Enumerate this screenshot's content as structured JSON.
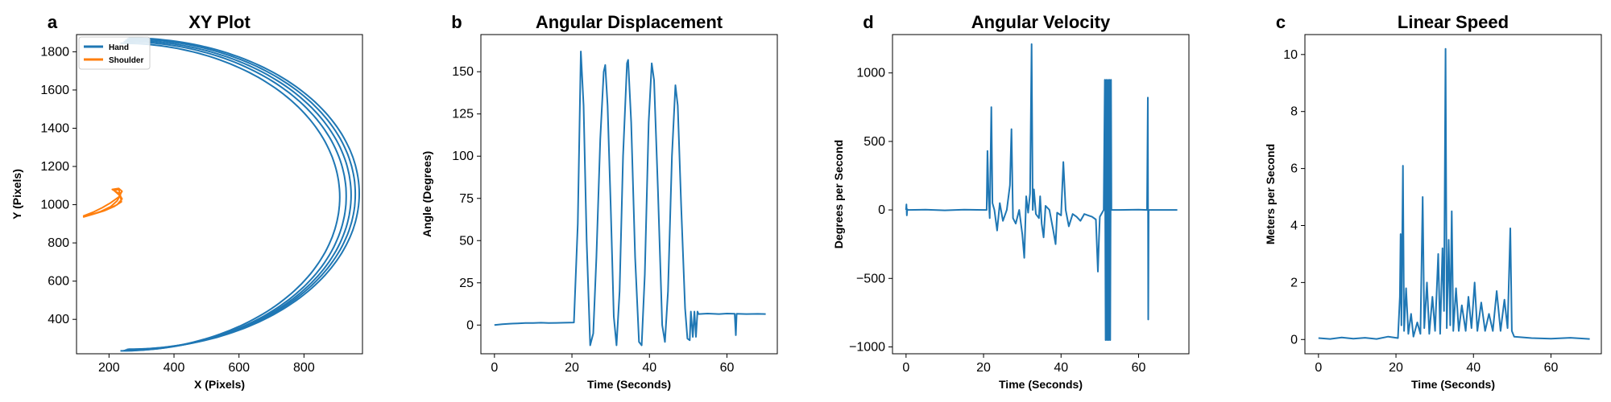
{
  "colors": {
    "series_1": "#1f77b4",
    "series_2": "#ff7f0e"
  },
  "chart_data": [
    {
      "id": "xy",
      "type": "line",
      "letter": "a",
      "title": "XY Plot",
      "xlabel": "X (Pixels)",
      "ylabel": "Y (Pixels)",
      "xlim": [
        100,
        980
      ],
      "ylim": [
        220,
        1890
      ],
      "xticks": [
        200,
        400,
        600,
        800
      ],
      "yticks": [
        400,
        600,
        800,
        1000,
        1200,
        1400,
        1600,
        1800
      ],
      "legend": "top-left",
      "grid": false,
      "series": [
        {
          "name": "Hand",
          "color": "#1f77b4",
          "curves": [
            {
              "x0": 235,
              "xp": 910,
              "y0": 1040,
              "ry": 805
            },
            {
              "x0": 245,
              "xp": 930,
              "y0": 1045,
              "ry": 808
            },
            {
              "x0": 250,
              "xp": 945,
              "y0": 1050,
              "ry": 810
            },
            {
              "x0": 255,
              "xp": 958,
              "y0": 1055,
              "ry": 812
            },
            {
              "x0": 260,
              "xp": 970,
              "y0": 1058,
              "ry": 814
            }
          ]
        },
        {
          "name": "Shoulder",
          "color": "#ff7f0e",
          "points": [
            [
              120,
              940
            ],
            [
              150,
              960
            ],
            [
              180,
              985
            ],
            [
              205,
              1010
            ],
            [
              230,
              1040
            ],
            [
              240,
              1070
            ],
            [
              230,
              1085
            ],
            [
              210,
              1080
            ],
            [
              230,
              1060
            ],
            [
              240,
              1030
            ],
            [
              225,
              1000
            ],
            [
              195,
              975
            ],
            [
              160,
              955
            ],
            [
              125,
              940
            ],
            [
              140,
              945
            ],
            [
              175,
              965
            ],
            [
              205,
              990
            ],
            [
              225,
              1020
            ],
            [
              235,
              1050
            ],
            [
              230,
              1080
            ],
            [
              215,
              1075
            ],
            [
              235,
              1045
            ],
            [
              238,
              1015
            ],
            [
              215,
              990
            ],
            [
              185,
              968
            ],
            [
              150,
              950
            ],
            [
              120,
              935
            ]
          ]
        }
      ]
    },
    {
      "id": "angdisp",
      "type": "line",
      "letter": "b",
      "title": "Angular Displacement",
      "xlabel": "Time (Seconds)",
      "ylabel": "Angle (Degrees)",
      "xlim": [
        -3.5,
        73
      ],
      "ylim": [
        -17,
        172
      ],
      "xticks": [
        0,
        20,
        40,
        60
      ],
      "yticks": [
        0,
        25,
        50,
        75,
        100,
        125,
        150
      ],
      "grid": false,
      "series": [
        {
          "name": "",
          "color": "#1f77b4",
          "points": [
            [
              0,
              0
            ],
            [
              2,
              0.5
            ],
            [
              4,
              0.8
            ],
            [
              6,
              1
            ],
            [
              8,
              1.2
            ],
            [
              10,
              1.2
            ],
            [
              12,
              1.4
            ],
            [
              14,
              1.2
            ],
            [
              16,
              1.3
            ],
            [
              18,
              1.4
            ],
            [
              20.5,
              1.5
            ],
            [
              21.5,
              60
            ],
            [
              22.3,
              162
            ],
            [
              23,
              130
            ],
            [
              23.8,
              50
            ],
            [
              24.7,
              -12
            ],
            [
              25.5,
              -5
            ],
            [
              26.3,
              40
            ],
            [
              27.3,
              110
            ],
            [
              28.2,
              150
            ],
            [
              28.6,
              154
            ],
            [
              29.2,
              130
            ],
            [
              30,
              70
            ],
            [
              30.8,
              5
            ],
            [
              31.5,
              -12
            ],
            [
              32.3,
              20
            ],
            [
              33.2,
              100
            ],
            [
              34.2,
              155
            ],
            [
              34.5,
              157
            ],
            [
              35.3,
              120
            ],
            [
              36.3,
              40
            ],
            [
              37.3,
              -10
            ],
            [
              38,
              -12
            ],
            [
              38.8,
              30
            ],
            [
              39.8,
              120
            ],
            [
              40.6,
              155
            ],
            [
              41.2,
              145
            ],
            [
              42.2,
              80
            ],
            [
              43.3,
              0
            ],
            [
              44,
              -10
            ],
            [
              44.8,
              20
            ],
            [
              45.8,
              100
            ],
            [
              46.7,
              142
            ],
            [
              47.3,
              130
            ],
            [
              48.2,
              70
            ],
            [
              49.2,
              10
            ],
            [
              49.8,
              -8
            ],
            [
              50.4,
              -9
            ],
            [
              50.7,
              8
            ],
            [
              51.2,
              -7
            ],
            [
              51.6,
              8
            ],
            [
              52,
              -7
            ],
            [
              52.4,
              8
            ],
            [
              52.7,
              6.5
            ],
            [
              55,
              6.8
            ],
            [
              58,
              6.5
            ],
            [
              60,
              6.8
            ],
            [
              62,
              6.7
            ],
            [
              62.3,
              -6
            ],
            [
              62.5,
              6.7
            ],
            [
              65,
              6.5
            ],
            [
              68,
              6.6
            ],
            [
              70,
              6.5
            ]
          ]
        }
      ]
    },
    {
      "id": "angvel",
      "type": "line",
      "letter": "d",
      "title": "Angular Velocity",
      "xlabel": "Time (Seconds)",
      "ylabel": "Degrees per Second",
      "xlim": [
        -3.5,
        73
      ],
      "ylim": [
        -1050,
        1280
      ],
      "xticks": [
        0,
        20,
        40,
        60
      ],
      "yticks": [
        -1000,
        -500,
        0,
        500,
        1000
      ],
      "grid": false,
      "series": [
        {
          "name": "",
          "color": "#1f77b4",
          "points": [
            [
              0,
              0
            ],
            [
              0.1,
              40
            ],
            [
              0.2,
              -40
            ],
            [
              0.3,
              5
            ],
            [
              0.5,
              0
            ],
            [
              5,
              2
            ],
            [
              10,
              -3
            ],
            [
              15,
              2
            ],
            [
              20,
              0
            ],
            [
              20.8,
              0
            ],
            [
              21,
              430
            ],
            [
              21.3,
              100
            ],
            [
              21.6,
              -60
            ],
            [
              22,
              750
            ],
            [
              22.3,
              50
            ],
            [
              22.8,
              0
            ],
            [
              23.5,
              -150
            ],
            [
              24.2,
              50
            ],
            [
              25,
              -80
            ],
            [
              26,
              0
            ],
            [
              26.8,
              180
            ],
            [
              27.2,
              590
            ],
            [
              27.6,
              -60
            ],
            [
              28.3,
              -100
            ],
            [
              29.2,
              0
            ],
            [
              30,
              -180
            ],
            [
              30.5,
              -350
            ],
            [
              31,
              100
            ],
            [
              31.5,
              -20
            ],
            [
              32,
              120
            ],
            [
              32.4,
              1210
            ],
            [
              32.7,
              0
            ],
            [
              33,
              150
            ],
            [
              33.5,
              -30
            ],
            [
              34.3,
              -60
            ],
            [
              34.6,
              100
            ],
            [
              35,
              -100
            ],
            [
              35.5,
              -200
            ],
            [
              36,
              30
            ],
            [
              37,
              0
            ],
            [
              38,
              -150
            ],
            [
              38.6,
              -250
            ],
            [
              39,
              -20
            ],
            [
              40,
              -40
            ],
            [
              40.6,
              350
            ],
            [
              41.2,
              0
            ],
            [
              42,
              -120
            ],
            [
              43,
              -30
            ],
            [
              44,
              -50
            ],
            [
              45,
              -80
            ],
            [
              46,
              -30
            ],
            [
              47,
              -40
            ],
            [
              48,
              -50
            ],
            [
              49,
              -70
            ],
            [
              49.5,
              -450
            ],
            [
              49.8,
              -200
            ],
            [
              50,
              -50
            ],
            [
              51,
              0
            ],
            [
              51.3,
              950
            ],
            [
              51.5,
              -950
            ],
            [
              51.7,
              950
            ],
            [
              51.9,
              -950
            ],
            [
              52.1,
              950
            ],
            [
              52.3,
              -950
            ],
            [
              52.5,
              950
            ],
            [
              52.7,
              -950
            ],
            [
              52.9,
              950
            ],
            [
              53,
              0
            ],
            [
              55,
              0
            ],
            [
              60,
              2
            ],
            [
              62.2,
              0
            ],
            [
              62.4,
              820
            ],
            [
              62.5,
              -800
            ],
            [
              62.6,
              0
            ],
            [
              65,
              0
            ],
            [
              70,
              0
            ]
          ]
        }
      ]
    },
    {
      "id": "linspeed",
      "type": "line",
      "letter": "c",
      "title": "Linear Speed",
      "xlabel": "Time (Seconds)",
      "ylabel": "Meters per Second",
      "xlim": [
        -3.5,
        73
      ],
      "ylim": [
        -0.5,
        10.7
      ],
      "xticks": [
        0,
        20,
        40,
        60
      ],
      "yticks": [
        0,
        2,
        4,
        6,
        8,
        10
      ],
      "grid": false,
      "series": [
        {
          "name": "",
          "color": "#1f77b4",
          "points": [
            [
              0,
              0.05
            ],
            [
              3,
              0.02
            ],
            [
              6,
              0.07
            ],
            [
              9,
              0.03
            ],
            [
              12,
              0.06
            ],
            [
              15,
              0.02
            ],
            [
              18,
              0.1
            ],
            [
              20.5,
              0.05
            ],
            [
              21,
              1.5
            ],
            [
              21.2,
              3.7
            ],
            [
              21.4,
              0.5
            ],
            [
              21.8,
              6.1
            ],
            [
              22.1,
              0.3
            ],
            [
              22.6,
              1.8
            ],
            [
              23.2,
              0.2
            ],
            [
              23.9,
              0.9
            ],
            [
              24.5,
              0.1
            ],
            [
              25.5,
              0.6
            ],
            [
              26.3,
              0.2
            ],
            [
              26.9,
              5.0
            ],
            [
              27.3,
              0.4
            ],
            [
              28,
              2.0
            ],
            [
              28.6,
              0.2
            ],
            [
              29.4,
              1.5
            ],
            [
              30.1,
              0.3
            ],
            [
              30.9,
              3.0
            ],
            [
              31.4,
              0.2
            ],
            [
              32,
              3.2
            ],
            [
              32.4,
              1.0
            ],
            [
              32.8,
              10.2
            ],
            [
              33.1,
              0.4
            ],
            [
              33.6,
              3.5
            ],
            [
              34,
              0.5
            ],
            [
              34.4,
              4.5
            ],
            [
              34.8,
              0.3
            ],
            [
              35.5,
              1.8
            ],
            [
              36.2,
              0.3
            ],
            [
              37,
              1.2
            ],
            [
              38,
              0.3
            ],
            [
              38.7,
              1.5
            ],
            [
              39.5,
              0.4
            ],
            [
              40.3,
              2.0
            ],
            [
              41,
              0.3
            ],
            [
              42,
              1.3
            ],
            [
              43,
              0.3
            ],
            [
              44,
              0.9
            ],
            [
              45,
              0.3
            ],
            [
              46,
              1.7
            ],
            [
              47,
              0.3
            ],
            [
              48,
              1.4
            ],
            [
              48.8,
              0.4
            ],
            [
              49.5,
              3.9
            ],
            [
              49.9,
              0.3
            ],
            [
              50.5,
              0.1
            ],
            [
              55,
              0.05
            ],
            [
              60,
              0.03
            ],
            [
              65,
              0.06
            ],
            [
              70,
              0.02
            ]
          ]
        }
      ]
    }
  ]
}
